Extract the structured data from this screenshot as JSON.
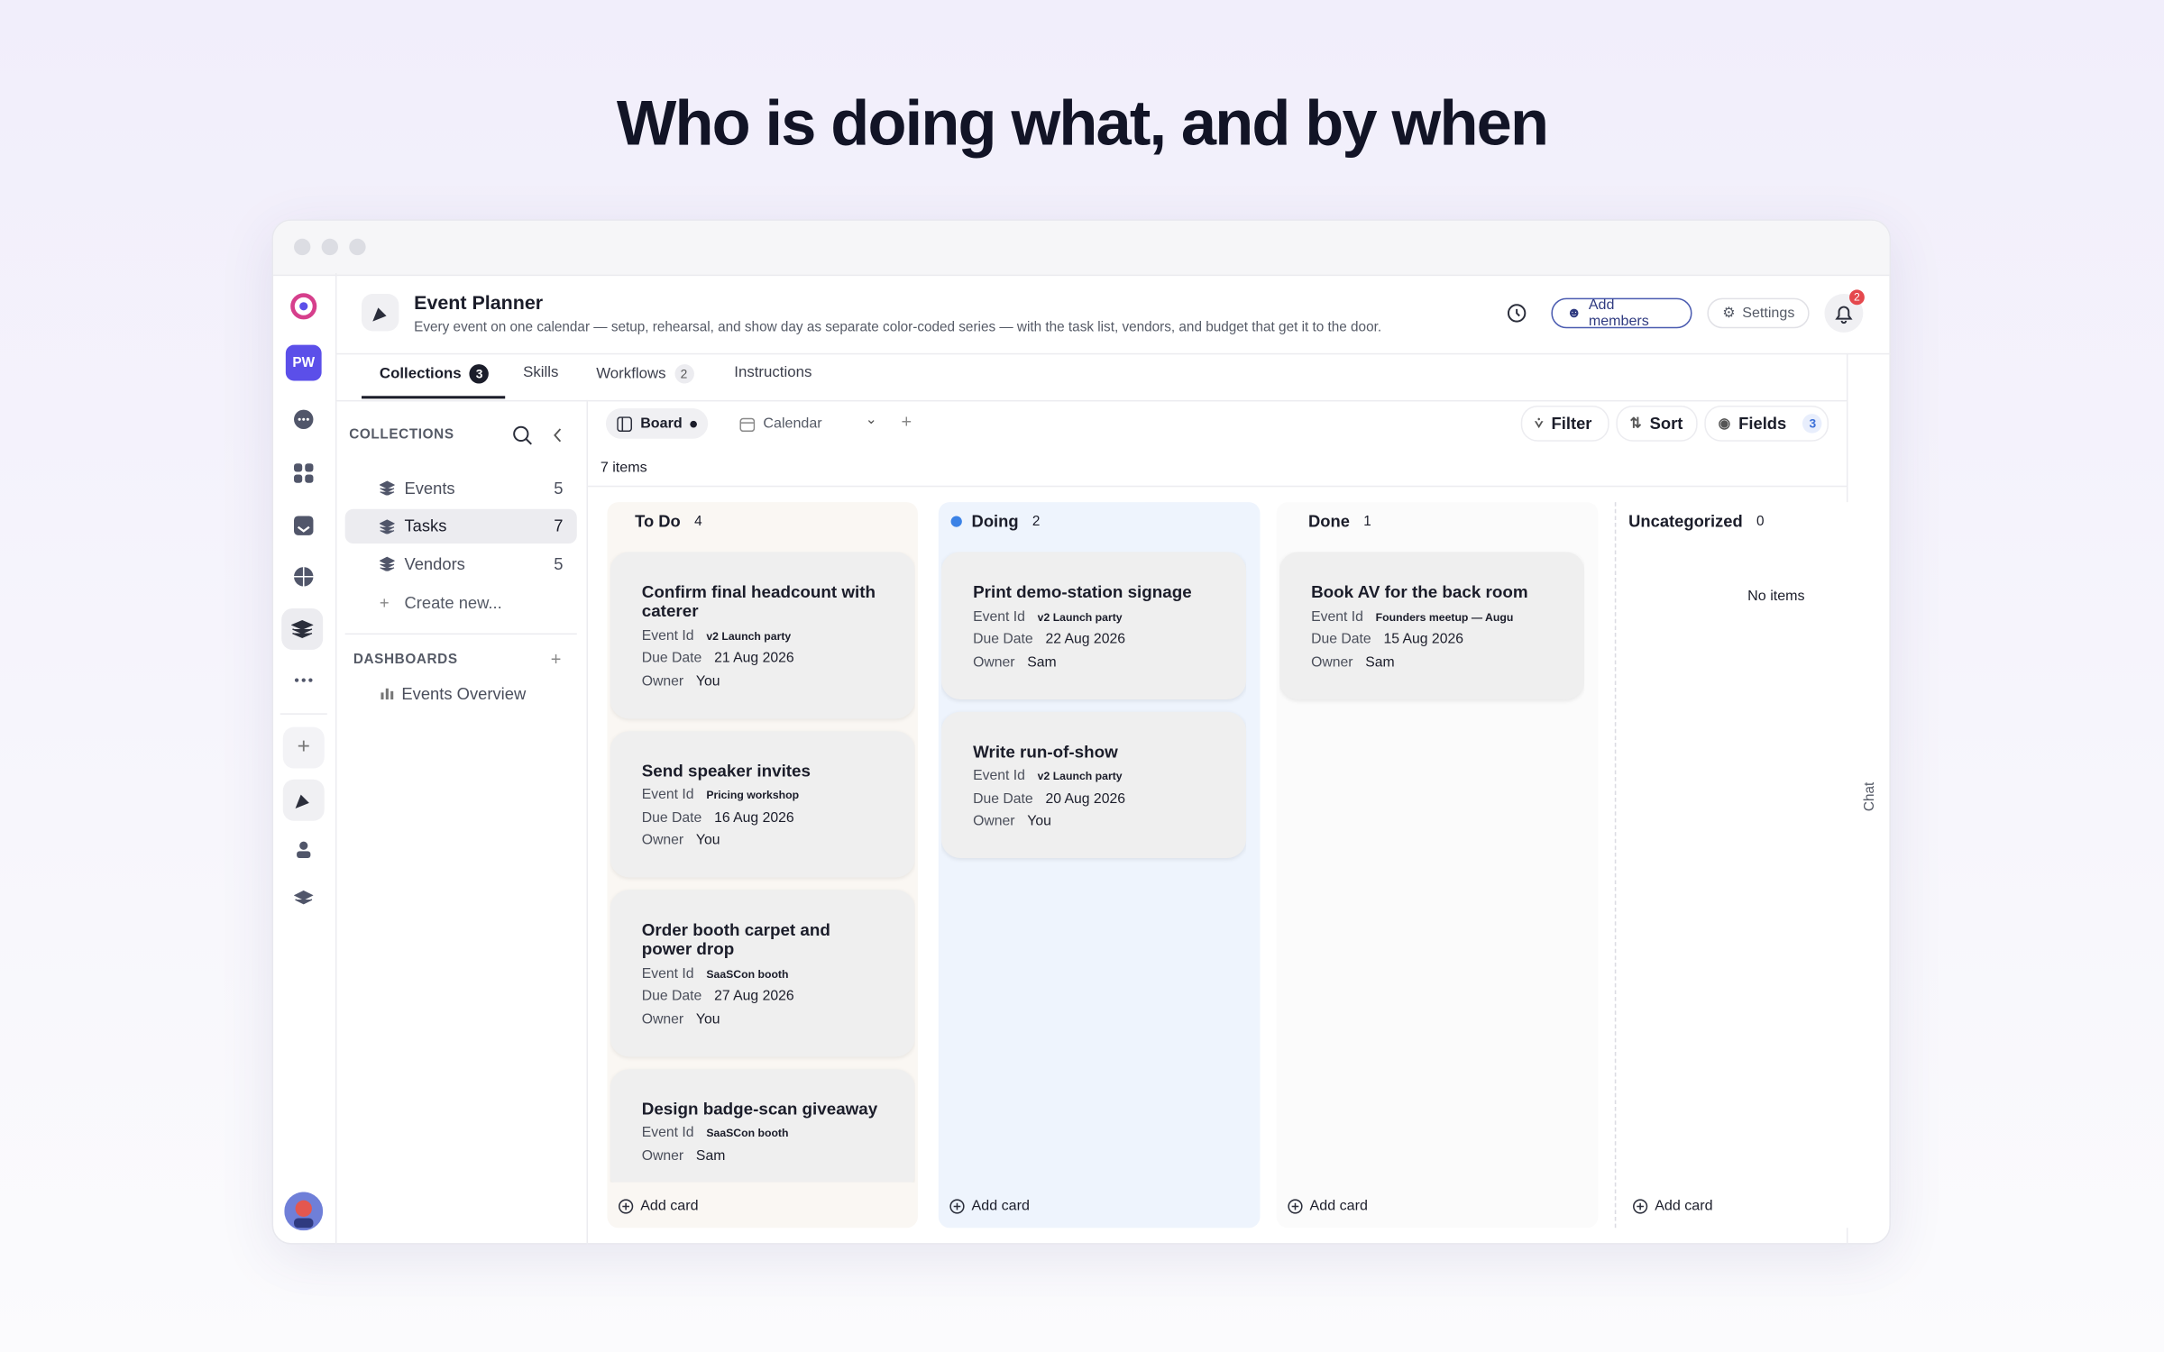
{
  "page": {
    "headline": "Who is doing what, and by when"
  },
  "rail": {
    "avatar": "PW"
  },
  "header": {
    "title": "Event Planner",
    "description": "Every event on one calendar — setup, rehearsal, and show day as separate color-coded series — with the task list, vendors, and budget that get it to the door.",
    "add_members": "Add members",
    "settings": "Settings",
    "notifications": "2"
  },
  "tabs": [
    {
      "label": "Collections",
      "count": "3"
    },
    {
      "label": "Skills"
    },
    {
      "label": "Workflows",
      "count": "2"
    },
    {
      "label": "Instructions"
    }
  ],
  "sidebar": {
    "collections_heading": "COLLECTIONS",
    "collections": [
      {
        "name": "Events",
        "count": "5"
      },
      {
        "name": "Tasks",
        "count": "7"
      },
      {
        "name": "Vendors",
        "count": "5"
      }
    ],
    "create_new": "Create new...",
    "dashboards_heading": "DASHBOARDS",
    "dashboards": [
      "Events Overview"
    ]
  },
  "toolbar": {
    "views": [
      "Board",
      "Calendar"
    ],
    "filter": "Filter",
    "sort": "Sort",
    "fields": "Fields",
    "fields_count": "3",
    "item_count": "7 items"
  },
  "board": {
    "add_card": "Add card",
    "empty": "No items",
    "columns": [
      {
        "name": "To Do",
        "count": "4",
        "cards": [
          {
            "title": "Confirm final headcount with caterer",
            "fields": [
              {
                "label": "Event Id",
                "value": "v2 Launch party"
              },
              {
                "label": "Due Date",
                "value": "21 Aug 2026"
              },
              {
                "label": "Owner",
                "value": "You"
              }
            ]
          },
          {
            "title": "Send speaker invites",
            "fields": [
              {
                "label": "Event Id",
                "value": "Pricing workshop"
              },
              {
                "label": "Due Date",
                "value": "16 Aug 2026"
              },
              {
                "label": "Owner",
                "value": "You"
              }
            ]
          },
          {
            "title": "Order booth carpet and power drop",
            "fields": [
              {
                "label": "Event Id",
                "value": "SaaSCon booth"
              },
              {
                "label": "Due Date",
                "value": "27 Aug 2026"
              },
              {
                "label": "Owner",
                "value": "You"
              }
            ]
          },
          {
            "title": "Design badge-scan giveaway",
            "fields": [
              {
                "label": "Event Id",
                "value": "SaaSCon booth"
              },
              {
                "label": "Owner",
                "value": "Sam"
              }
            ]
          }
        ]
      },
      {
        "name": "Doing",
        "count": "2",
        "cards": [
          {
            "title": "Print demo-station signage",
            "fields": [
              {
                "label": "Event Id",
                "value": "v2 Launch party"
              },
              {
                "label": "Due Date",
                "value": "22 Aug 2026"
              },
              {
                "label": "Owner",
                "value": "Sam"
              }
            ]
          },
          {
            "title": "Write run-of-show",
            "fields": [
              {
                "label": "Event Id",
                "value": "v2 Launch party"
              },
              {
                "label": "Due Date",
                "value": "20 Aug 2026"
              },
              {
                "label": "Owner",
                "value": "You"
              }
            ]
          }
        ]
      },
      {
        "name": "Done",
        "count": "1",
        "cards": [
          {
            "title": "Book AV for the back room",
            "fields": [
              {
                "label": "Event Id",
                "value": "Founders meetup — Augu"
              },
              {
                "label": "Due Date",
                "value": "15 Aug 2026"
              },
              {
                "label": "Owner",
                "value": "Sam"
              }
            ]
          }
        ]
      },
      {
        "name": "Uncategorized",
        "count": "0",
        "cards": []
      }
    ]
  },
  "chat": "Chat"
}
